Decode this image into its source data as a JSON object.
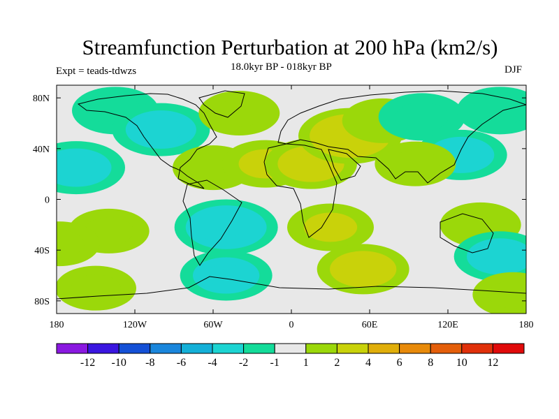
{
  "chart_data": {
    "type": "heatmap",
    "title": "Streamfunction Perturbation at 200 hPa (km2/s)",
    "subtitle": "18.0kyr BP - 018kyr BP",
    "left_label": "Expt = teads-tdwzs",
    "right_label": "DJF",
    "x_axis": {
      "range": [
        -180,
        180
      ],
      "ticks": [
        -180,
        -120,
        -60,
        0,
        60,
        120,
        180
      ],
      "tick_labels": [
        "180",
        "120W",
        "60W",
        "0",
        "60E",
        "120E",
        "180"
      ]
    },
    "y_axis": {
      "range": [
        -90,
        90
      ],
      "ticks": [
        80,
        40,
        0,
        -40,
        -80
      ],
      "tick_labels": [
        "80N",
        "40N",
        "0",
        "40S",
        "80S"
      ]
    },
    "colorbar": {
      "levels": [
        "-12",
        "-10",
        "-8",
        "-6",
        "-4",
        "-2",
        "-1",
        "1",
        "2",
        "4",
        "6",
        "8",
        "10",
        "12"
      ],
      "colors": [
        "#8a18e0",
        "#3a16e0",
        "#1450d6",
        "#1a86dc",
        "#14b0d8",
        "#1cd4d2",
        "#14dc9a",
        "#e8e8e8",
        "#9bd80a",
        "#c9d20a",
        "#e0ae0a",
        "#e88a0a",
        "#e45e0a",
        "#e0300a",
        "#e00a0a"
      ]
    },
    "field_regions": [
      {
        "lon": -135,
        "lat": 70,
        "value": -2
      },
      {
        "lon": -100,
        "lat": 55,
        "value": -3
      },
      {
        "lon": -40,
        "lat": 68,
        "value": 1.5
      },
      {
        "lon": -60,
        "lat": 25,
        "value": 1.5
      },
      {
        "lon": -20,
        "lat": 28,
        "value": 2
      },
      {
        "lon": 15,
        "lat": 28,
        "value": 2.5
      },
      {
        "lon": 45,
        "lat": 50,
        "value": 3.5
      },
      {
        "lon": 70,
        "lat": 62,
        "value": 1.5
      },
      {
        "lon": 100,
        "lat": 65,
        "value": -2
      },
      {
        "lon": 130,
        "lat": 35,
        "value": -2.5
      },
      {
        "lon": 160,
        "lat": 70,
        "value": -2
      },
      {
        "lon": 95,
        "lat": 28,
        "value": 1.5
      },
      {
        "lon": -165,
        "lat": 25,
        "value": -3
      },
      {
        "lon": -50,
        "lat": -22,
        "value": -3.5
      },
      {
        "lon": -140,
        "lat": -25,
        "value": 1.5
      },
      {
        "lon": 30,
        "lat": -22,
        "value": 2
      },
      {
        "lon": 55,
        "lat": -55,
        "value": 2.5
      },
      {
        "lon": 145,
        "lat": -20,
        "value": 1.5
      },
      {
        "lon": 160,
        "lat": -45,
        "value": -2.5
      },
      {
        "lon": -50,
        "lat": -60,
        "value": -2.5
      },
      {
        "lon": -150,
        "lat": -70,
        "value": 1.5
      },
      {
        "lon": 170,
        "lat": -75,
        "value": 1.5
      },
      {
        "lon": -178,
        "lat": -35,
        "value": 1.5
      }
    ]
  }
}
